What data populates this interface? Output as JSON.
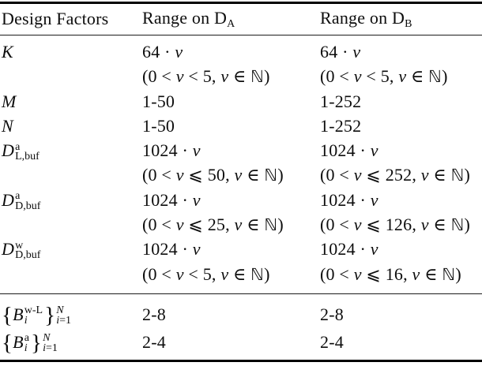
{
  "table": {
    "header": {
      "design_factors": "Design Factors",
      "range_a": {
        "text": "Range on D",
        "sub": "A"
      },
      "range_b": {
        "text": "Range on D",
        "sub": "B"
      }
    },
    "rows": [
      {
        "label": {
          "text": "K"
        },
        "a1": [
          {
            "t": "64 · "
          },
          {
            "t": "v",
            "it": 1
          }
        ],
        "a2": [
          {
            "t": "(0 < "
          },
          {
            "t": "v",
            "it": 1
          },
          {
            "t": " < 5, "
          },
          {
            "t": "v",
            "it": 1
          },
          {
            "t": " ∈ "
          },
          {
            "t": "ℕ",
            "bb": 1
          },
          {
            "t": ")"
          }
        ],
        "b1": [
          {
            "t": "64 · "
          },
          {
            "t": "v",
            "it": 1
          }
        ],
        "b2": [
          {
            "t": "(0 < "
          },
          {
            "t": "v",
            "it": 1
          },
          {
            "t": " < 5, "
          },
          {
            "t": "v",
            "it": 1
          },
          {
            "t": " ∈ "
          },
          {
            "t": "ℕ",
            "bb": 1
          },
          {
            "t": ")"
          }
        ]
      },
      {
        "label": {
          "text": "M"
        },
        "a1": [
          {
            "t": "1-50"
          }
        ],
        "b1": [
          {
            "t": "1-252"
          }
        ]
      },
      {
        "label": {
          "text": "N"
        },
        "a1": [
          {
            "t": "1-50"
          }
        ],
        "b1": [
          {
            "t": "1-252"
          }
        ]
      },
      {
        "label": {
          "base": "D",
          "sup": "a",
          "sub": "L,buf"
        },
        "a1": [
          {
            "t": "1024 · "
          },
          {
            "t": "v",
            "it": 1
          }
        ],
        "a2": [
          {
            "t": "(0 < "
          },
          {
            "t": "v",
            "it": 1
          },
          {
            "t": " ⩽ 50, "
          },
          {
            "t": "v",
            "it": 1
          },
          {
            "t": " ∈ "
          },
          {
            "t": "ℕ",
            "bb": 1
          },
          {
            "t": ")"
          }
        ],
        "b1": [
          {
            "t": "1024 · "
          },
          {
            "t": "v",
            "it": 1
          }
        ],
        "b2": [
          {
            "t": "(0 < "
          },
          {
            "t": "v",
            "it": 1
          },
          {
            "t": " ⩽ 252, "
          },
          {
            "t": "v",
            "it": 1
          },
          {
            "t": " ∈ "
          },
          {
            "t": "ℕ",
            "bb": 1
          },
          {
            "t": ")"
          }
        ]
      },
      {
        "label": {
          "base": "D",
          "sup": "a",
          "sub": "D,buf"
        },
        "a1": [
          {
            "t": "1024 · "
          },
          {
            "t": "v",
            "it": 1
          }
        ],
        "a2": [
          {
            "t": "(0 < "
          },
          {
            "t": "v",
            "it": 1
          },
          {
            "t": " ⩽ 25, "
          },
          {
            "t": "v",
            "it": 1
          },
          {
            "t": " ∈ "
          },
          {
            "t": "ℕ",
            "bb": 1
          },
          {
            "t": ")"
          }
        ],
        "b1": [
          {
            "t": "1024 · "
          },
          {
            "t": "v",
            "it": 1
          }
        ],
        "b2": [
          {
            "t": "(0 < "
          },
          {
            "t": "v",
            "it": 1
          },
          {
            "t": " ⩽ 126, "
          },
          {
            "t": "v",
            "it": 1
          },
          {
            "t": " ∈ "
          },
          {
            "t": "ℕ",
            "bb": 1
          },
          {
            "t": ")"
          }
        ]
      },
      {
        "label": {
          "base": "D",
          "sup": "w",
          "sub": "D,buf"
        },
        "a1": [
          {
            "t": "1024 · "
          },
          {
            "t": "v",
            "it": 1
          }
        ],
        "a2": [
          {
            "t": "(0 < "
          },
          {
            "t": "v",
            "it": 1
          },
          {
            "t": " < 5, "
          },
          {
            "t": "v",
            "it": 1
          },
          {
            "t": " ∈ "
          },
          {
            "t": "ℕ",
            "bb": 1
          },
          {
            "t": ")"
          }
        ],
        "b1": [
          {
            "t": "1024 · "
          },
          {
            "t": "v",
            "it": 1
          }
        ],
        "b2": [
          {
            "t": "(0 < "
          },
          {
            "t": "v",
            "it": 1
          },
          {
            "t": " ⩽ 16, "
          },
          {
            "t": "v",
            "it": 1
          },
          {
            "t": " ∈ "
          },
          {
            "t": "ℕ",
            "bb": 1
          },
          {
            "t": ")"
          }
        ]
      },
      {
        "label": {
          "open": "{",
          "base": "B",
          "sup": "w-L",
          "sub": "i",
          "close": "}",
          "outsup": "N",
          "outsub_i": "i",
          "outsub_eq": "=1"
        },
        "a1": [
          {
            "t": "2-8"
          }
        ],
        "b1": [
          {
            "t": "2-8"
          }
        ]
      },
      {
        "label": {
          "open": "{",
          "base": "B",
          "sup": "a",
          "sub": "i",
          "close": "}",
          "outsup": "N",
          "outsub_i": "i",
          "outsub_eq": "=1"
        },
        "a1": [
          {
            "t": "2-4"
          }
        ],
        "b1": [
          {
            "t": "2-4"
          }
        ]
      }
    ]
  }
}
